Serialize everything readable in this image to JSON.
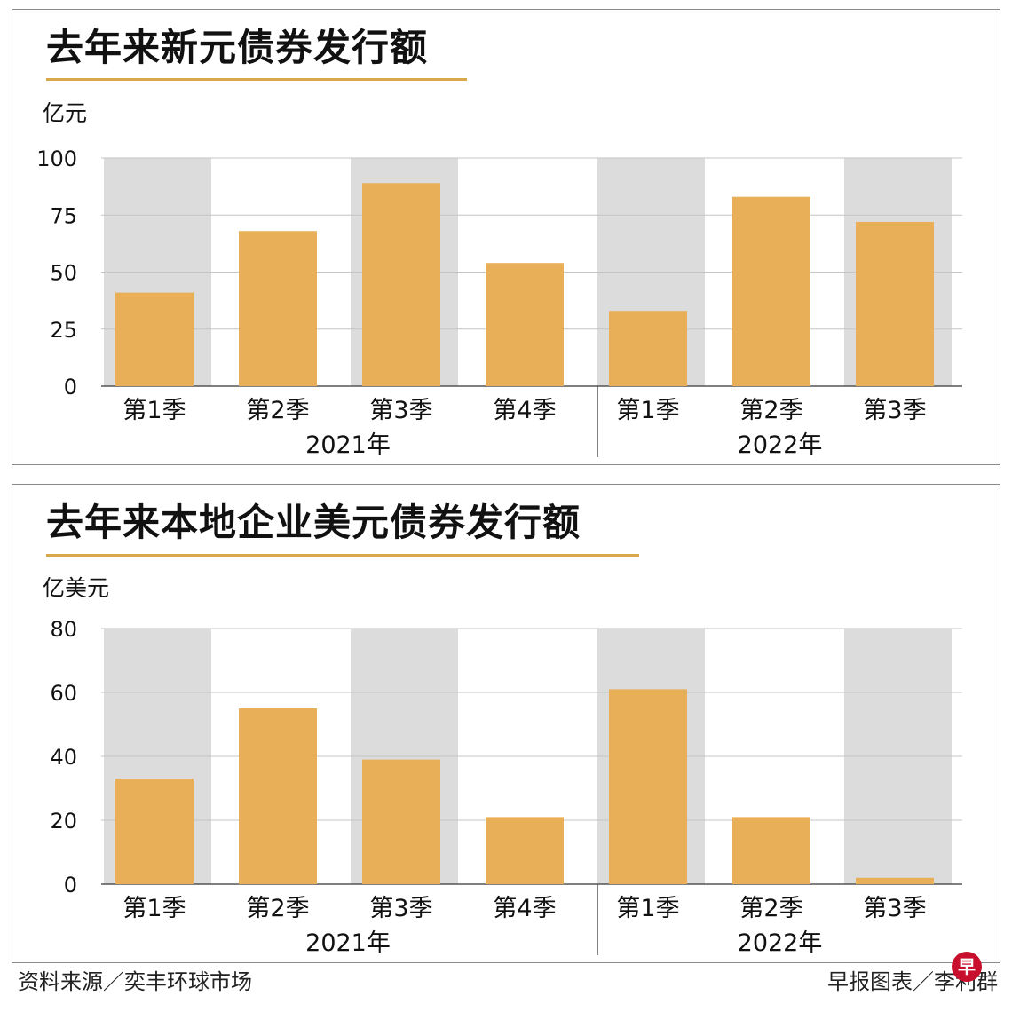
{
  "charts": [
    {
      "title": "去年来新元债券发行额",
      "unit": "亿元",
      "chart_data": {
        "type": "bar",
        "title": "去年来新元债券发行额",
        "ylabel": "亿元",
        "ylim": [
          0,
          100
        ],
        "yticks": [
          "0",
          "25",
          "50",
          "75",
          "100"
        ],
        "ytick_values": [
          0,
          25,
          50,
          75,
          100
        ],
        "categories": [
          "第1季",
          "第2季",
          "第3季",
          "第4季",
          "第1季",
          "第2季",
          "第3季"
        ],
        "groups": [
          {
            "label": "2021年",
            "count": 4
          },
          {
            "label": "2022年",
            "count": 3
          }
        ],
        "values": [
          41,
          68,
          89,
          54,
          33,
          83,
          72
        ],
        "grid": true,
        "alternating_shading": true
      }
    },
    {
      "title": "去年来本地企业美元债券发行额",
      "unit": "亿美元",
      "chart_data": {
        "type": "bar",
        "title": "去年来本地企业美元债券发行额",
        "ylabel": "亿美元",
        "ylim": [
          0,
          80
        ],
        "yticks": [
          "0",
          "20",
          "40",
          "60",
          "80"
        ],
        "ytick_values": [
          0,
          20,
          40,
          60,
          80
        ],
        "categories": [
          "第1季",
          "第2季",
          "第3季",
          "第4季",
          "第1季",
          "第2季",
          "第3季"
        ],
        "groups": [
          {
            "label": "2021年",
            "count": 4
          },
          {
            "label": "2022年",
            "count": 3
          }
        ],
        "values": [
          33,
          55,
          39,
          21,
          61,
          21,
          2
        ],
        "grid": true,
        "alternating_shading": true
      }
    }
  ],
  "colors": {
    "bar": "#e8ae58",
    "shade": "#dcdcdc",
    "grid": "#c4c4c4",
    "axis": "#555555",
    "title_rule": "#d9a84a",
    "logo": "#c8102e"
  },
  "footer": {
    "source": "资料来源／奕丰环球市场",
    "credit": "早报图表／李利群",
    "logo_char": "早"
  }
}
